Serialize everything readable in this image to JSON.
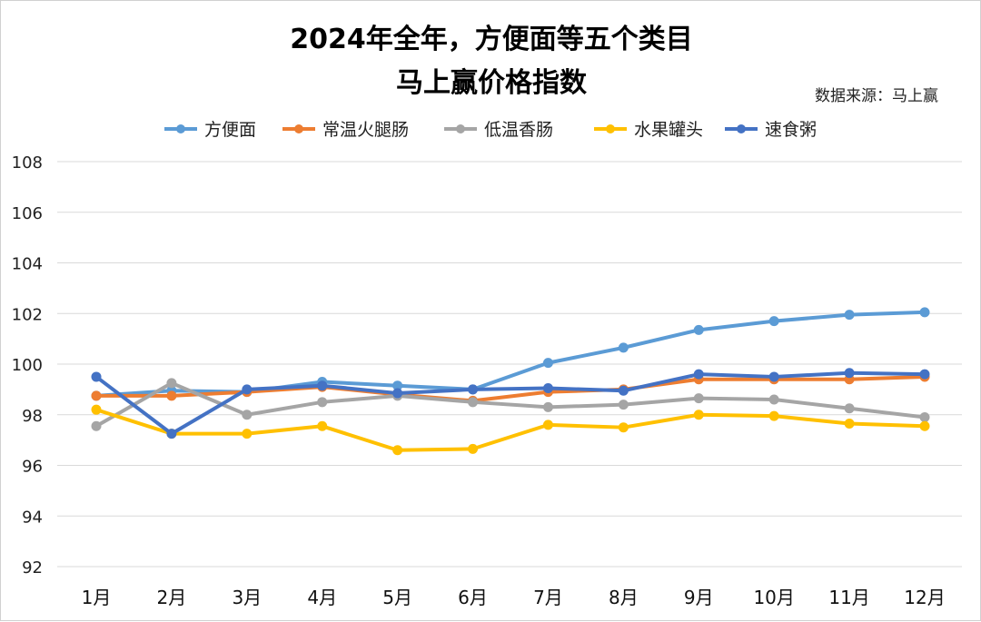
{
  "chart_data": {
    "type": "line",
    "title_lines": [
      "2024年全年，方便面等五个类目",
      "马上赢价格指数"
    ],
    "source_note": "数据来源：马上赢",
    "categories": [
      "1月",
      "2月",
      "3月",
      "4月",
      "5月",
      "6月",
      "7月",
      "8月",
      "9月",
      "10月",
      "11月",
      "12月"
    ],
    "ylim": [
      92,
      108
    ],
    "yticks": [
      92,
      94,
      96,
      98,
      100,
      102,
      104,
      106,
      108
    ],
    "grid": true,
    "legend_position": "top",
    "series": [
      {
        "name": "方便面",
        "color": "#5b9bd5",
        "values": [
          98.75,
          98.95,
          98.9,
          99.3,
          99.15,
          99.0,
          100.05,
          100.65,
          101.35,
          101.7,
          101.95,
          102.05
        ]
      },
      {
        "name": "常温火腿肠",
        "color": "#ed7d31",
        "values": [
          98.75,
          98.75,
          98.9,
          99.1,
          98.8,
          98.55,
          98.9,
          99.0,
          99.4,
          99.4,
          99.4,
          99.5
        ]
      },
      {
        "name": "低温香肠",
        "color": "#a5a5a5",
        "values": [
          97.55,
          99.25,
          98.0,
          98.5,
          98.75,
          98.5,
          98.3,
          98.4,
          98.65,
          98.6,
          98.25,
          97.9
        ]
      },
      {
        "name": "水果罐头",
        "color": "#ffc000",
        "values": [
          98.2,
          97.25,
          97.25,
          97.55,
          96.6,
          96.65,
          97.6,
          97.5,
          98.0,
          97.95,
          97.65,
          97.55
        ]
      },
      {
        "name": "速食粥",
        "color": "#4472c4",
        "values": [
          99.5,
          97.25,
          99.0,
          99.15,
          98.85,
          99.0,
          99.05,
          98.95,
          99.6,
          99.5,
          99.65,
          99.6
        ]
      }
    ]
  }
}
